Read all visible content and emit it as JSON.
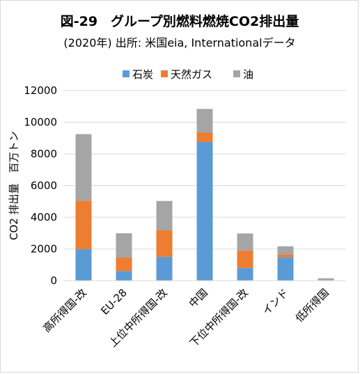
{
  "chart_data": {
    "type": "bar",
    "stacked": true,
    "title": "図-29　グループ別燃料燃焼CO2排出量",
    "subtitle": "(2020年)  出所: 米国eia, Internationalデータ",
    "xlabel": "",
    "ylabel": "CO2 排出量　百万トン",
    "ylim": [
      0,
      12000
    ],
    "yticks": [
      0,
      2000,
      4000,
      6000,
      8000,
      10000,
      12000
    ],
    "grid": true,
    "legend_position": "top",
    "categories": [
      "高所得国-改",
      "EU-28",
      "上位中所得国-改",
      "中国",
      "下位中所得国-改",
      "インド",
      "低所得国"
    ],
    "series": [
      {
        "name": "石炭",
        "color": "#5B9BD5",
        "values": [
          1980,
          600,
          1500,
          8750,
          800,
          1480,
          0
        ]
      },
      {
        "name": "天然ガス",
        "color": "#ED7D31",
        "values": [
          3060,
          850,
          1700,
          610,
          1100,
          170,
          10
        ]
      },
      {
        "name": "油",
        "color": "#A5A5A5",
        "values": [
          4210,
          1540,
          1830,
          1480,
          1080,
          520,
          140
        ]
      }
    ]
  }
}
